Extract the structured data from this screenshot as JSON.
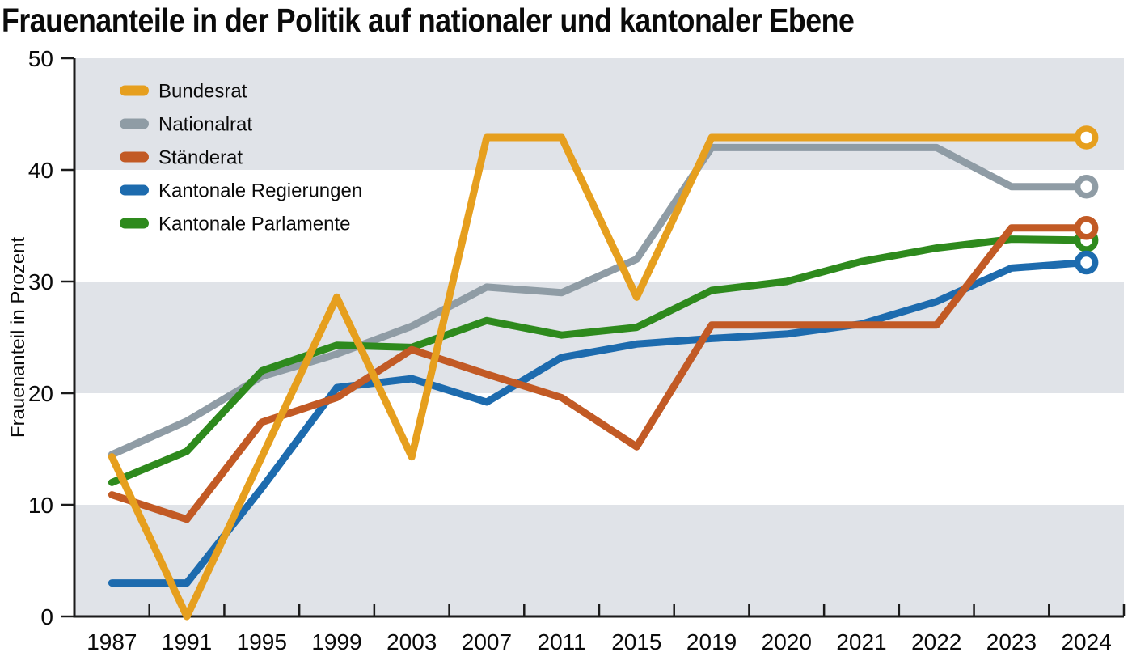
{
  "chart_data": {
    "type": "line",
    "title": "Frauenanteile in der Politik auf nationaler und kantonaler Ebene",
    "ylabel": "Frauenanteil in Prozent",
    "ylim": [
      0,
      50
    ],
    "yticks": [
      0,
      10,
      20,
      30,
      40,
      50
    ],
    "x_categories": [
      "1987",
      "1991",
      "1995",
      "1999",
      "2003",
      "2007",
      "2011",
      "2015",
      "2019",
      "2020",
      "2021",
      "2022",
      "2023",
      "2024"
    ],
    "legend_position": "top-left inside plot",
    "grid": "alternating horizontal background bands, ticks between categories",
    "band_value_ranges": [
      [
        0,
        10
      ],
      [
        20,
        30
      ],
      [
        40,
        50
      ]
    ],
    "end_marker": "open circle on last data point of each series",
    "series": [
      {
        "name": "Bundesrat",
        "color": "#E69F1E",
        "z": 5,
        "values": [
          14.3,
          0,
          14.3,
          28.6,
          14.3,
          42.9,
          42.9,
          28.6,
          42.9,
          42.9,
          42.9,
          42.9,
          42.9,
          42.9
        ]
      },
      {
        "name": "Nationalrat",
        "color": "#8F9CA5",
        "z": 1,
        "values": [
          14.5,
          17.5,
          21.5,
          23.5,
          26,
          29.5,
          29,
          32,
          42,
          42,
          42,
          42,
          38.5,
          38.5
        ]
      },
      {
        "name": "Ständerat",
        "color": "#C25A25",
        "z": 4,
        "values": [
          10.9,
          8.7,
          17.4,
          19.6,
          23.9,
          21.7,
          19.6,
          15.2,
          26.1,
          26.1,
          26.1,
          26.1,
          34.8,
          34.8
        ]
      },
      {
        "name": "Kantonale Regierungen",
        "color": "#1D6BAE",
        "z": 3,
        "values": [
          3,
          3,
          11.5,
          20.5,
          21.3,
          19.2,
          23.2,
          24.4,
          24.9,
          25.3,
          26.2,
          28.2,
          31.2,
          31.7
        ]
      },
      {
        "name": "Kantonale Parlamente",
        "color": "#2E8A1D",
        "z": 2,
        "values": [
          12,
          14.8,
          22,
          24.3,
          24.1,
          26.5,
          25.2,
          25.9,
          29.2,
          30,
          31.8,
          33,
          33.8,
          33.7
        ]
      }
    ]
  },
  "colors": {
    "band": "#E0E3E8",
    "axis": "#1A1A1A",
    "text": "#0B0B0B",
    "background": "#FFFFFF"
  }
}
